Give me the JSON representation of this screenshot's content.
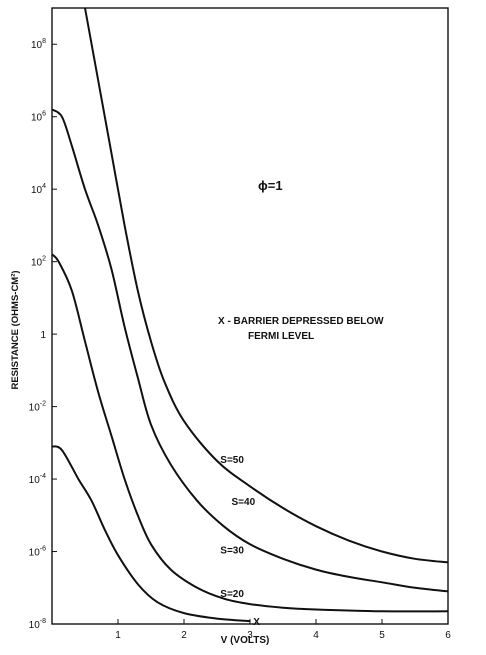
{
  "chart_data": {
    "type": "line",
    "ylabel": "RESISTANCE (OHMS-CM²)",
    "xlabel": "V (VOLTS)",
    "xlim": [
      0,
      6
    ],
    "ylim_log10": [
      -8,
      9
    ],
    "yscale": "log",
    "grid": false,
    "x_ticks": [
      {
        "value": 1,
        "label": "1"
      },
      {
        "value": 2,
        "label": "2"
      },
      {
        "value": 3,
        "label": "3"
      },
      {
        "value": 4,
        "label": "4"
      },
      {
        "value": 5,
        "label": "5"
      },
      {
        "value": 6,
        "label": "6"
      }
    ],
    "y_ticks": [
      {
        "exp": 8,
        "base": "10",
        "sup": "8"
      },
      {
        "exp": 6,
        "base": "10",
        "sup": "6"
      },
      {
        "exp": 4,
        "base": "10",
        "sup": "4"
      },
      {
        "exp": 2,
        "base": "10",
        "sup": "2"
      },
      {
        "exp": 0,
        "base": "1",
        "sup": ""
      },
      {
        "exp": -2,
        "base": "10",
        "sup": "-2"
      },
      {
        "exp": -4,
        "base": "10",
        "sup": "-4"
      },
      {
        "exp": -6,
        "base": "10",
        "sup": "-6"
      },
      {
        "exp": -8,
        "base": "10",
        "sup": "-8"
      }
    ],
    "annotations": {
      "phi": "ϕ=1",
      "note_line1": "X - BARRIER DEPRESSED BELOW",
      "note_line2": "FERMI LEVEL"
    },
    "series": [
      {
        "name": "S=50",
        "points": [
          [
            0.5,
            9.0
          ],
          [
            0.7,
            7.0
          ],
          [
            0.9,
            5.0
          ],
          [
            1.1,
            3.0
          ],
          [
            1.3,
            1.2
          ],
          [
            1.5,
            -0.2
          ],
          [
            1.7,
            -1.3
          ],
          [
            2.0,
            -2.4
          ],
          [
            2.5,
            -3.5
          ],
          [
            3.0,
            -4.2
          ],
          [
            3.5,
            -4.8
          ],
          [
            4.0,
            -5.3
          ],
          [
            4.5,
            -5.7
          ],
          [
            5.0,
            -6.0
          ],
          [
            5.5,
            -6.2
          ],
          [
            6.0,
            -6.3
          ]
        ]
      },
      {
        "name": "S=40",
        "points": [
          [
            0.0,
            6.2
          ],
          [
            0.15,
            6.0
          ],
          [
            0.3,
            5.2
          ],
          [
            0.5,
            4.0
          ],
          [
            0.7,
            3.0
          ],
          [
            0.9,
            1.8
          ],
          [
            1.1,
            0.2
          ],
          [
            1.3,
            -1.2
          ],
          [
            1.5,
            -2.5
          ],
          [
            1.8,
            -3.6
          ],
          [
            2.2,
            -4.6
          ],
          [
            2.6,
            -5.3
          ],
          [
            3.0,
            -5.8
          ],
          [
            3.5,
            -6.2
          ],
          [
            4.0,
            -6.5
          ],
          [
            4.5,
            -6.7
          ],
          [
            5.0,
            -6.85
          ],
          [
            5.5,
            -7.0
          ],
          [
            6.0,
            -7.1
          ]
        ]
      },
      {
        "name": "S=30",
        "points": [
          [
            0.0,
            2.2
          ],
          [
            0.1,
            2.0
          ],
          [
            0.3,
            1.2
          ],
          [
            0.5,
            -0.2
          ],
          [
            0.7,
            -1.6
          ],
          [
            0.9,
            -2.8
          ],
          [
            1.1,
            -4.0
          ],
          [
            1.3,
            -5.0
          ],
          [
            1.5,
            -5.8
          ],
          [
            1.8,
            -6.5
          ],
          [
            2.2,
            -7.0
          ],
          [
            2.6,
            -7.3
          ],
          [
            3.0,
            -7.45
          ],
          [
            3.5,
            -7.55
          ],
          [
            4.0,
            -7.6
          ],
          [
            5.0,
            -7.65
          ],
          [
            6.0,
            -7.65
          ]
        ]
      },
      {
        "name": "S=20",
        "points": [
          [
            0.0,
            -3.1
          ],
          [
            0.15,
            -3.2
          ],
          [
            0.4,
            -4.0
          ],
          [
            0.6,
            -4.6
          ],
          [
            0.8,
            -5.4
          ],
          [
            1.0,
            -6.1
          ],
          [
            1.3,
            -6.9
          ],
          [
            1.6,
            -7.4
          ],
          [
            2.0,
            -7.7
          ],
          [
            2.5,
            -7.85
          ],
          [
            3.0,
            -7.92
          ]
        ]
      }
    ],
    "curve_labels": [
      {
        "text": "S=50",
        "x": 2.55,
        "y": -3.45
      },
      {
        "text": "S=40",
        "x": 2.72,
        "y": -4.6
      },
      {
        "text": "S=30",
        "x": 2.55,
        "y": -5.95
      },
      {
        "text": "S=20",
        "x": 2.55,
        "y": -7.15
      }
    ],
    "end_marker": {
      "symbol": "X",
      "x": 3.05,
      "y": -7.92
    }
  }
}
